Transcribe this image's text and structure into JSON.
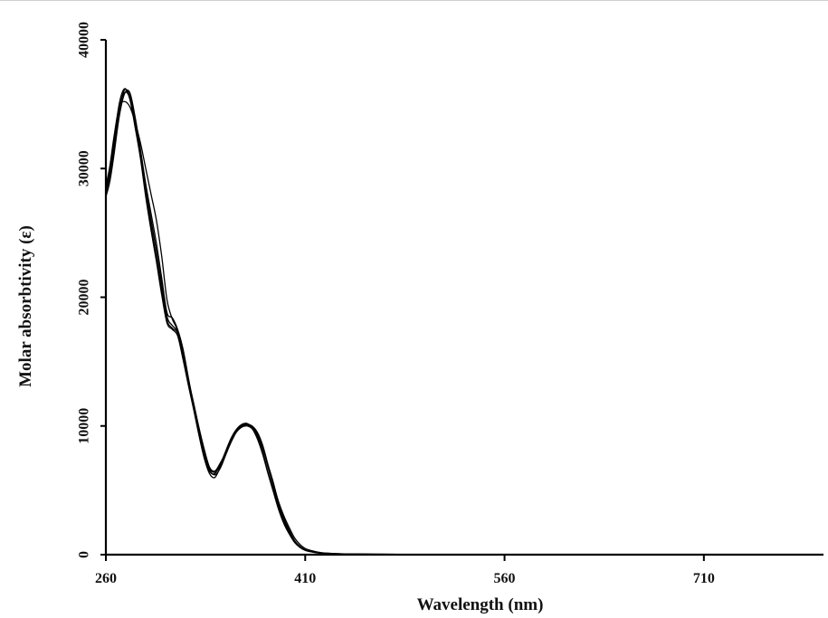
{
  "chart_data": {
    "type": "line",
    "title": "",
    "xlabel": "Wavelength (nm)",
    "ylabel": "Molar absorbtivity (ε)",
    "xlim": [
      260,
      800
    ],
    "ylim": [
      0,
      40000
    ],
    "xticks": [
      260,
      410,
      560,
      710
    ],
    "yticks": [
      0,
      10000,
      20000,
      30000,
      40000
    ],
    "grid": false,
    "legend": "none",
    "series": [
      {
        "x": [
          260,
          263,
          266,
          270,
          274,
          278,
          282,
          286,
          290,
          294,
          298,
          302,
          306,
          310,
          314,
          318,
          322,
          326,
          330,
          334,
          338,
          342,
          346,
          350,
          354,
          358,
          362,
          366,
          370,
          374,
          378,
          382,
          386,
          390,
          394,
          398,
          402,
          406,
          410,
          416,
          422,
          428,
          434,
          440,
          450,
          460,
          480,
          520,
          560,
          600,
          650,
          700
        ],
        "y": [
          28000,
          29500,
          31500,
          34500,
          36100,
          35600,
          33500,
          31000,
          28000,
          25500,
          23000,
          20500,
          18200,
          17600,
          17200,
          15500,
          13500,
          11500,
          9500,
          7800,
          6500,
          6300,
          7000,
          8000,
          9000,
          9700,
          10100,
          10200,
          9900,
          9200,
          8000,
          6400,
          5000,
          3600,
          2500,
          1700,
          1000,
          600,
          350,
          200,
          120,
          80,
          60,
          50,
          40,
          30,
          25,
          20,
          15,
          10,
          8,
          5
        ]
      },
      {
        "x": [
          260,
          263,
          266,
          270,
          274,
          278,
          282,
          286,
          290,
          294,
          298,
          302,
          306,
          310,
          314,
          318,
          322,
          326,
          330,
          334,
          338,
          342,
          346,
          350,
          354,
          358,
          362,
          366,
          370,
          374,
          378,
          382,
          386,
          390,
          394,
          398,
          402,
          406,
          410,
          416,
          422,
          428,
          434,
          440,
          450,
          460,
          480,
          520,
          560,
          600,
          650,
          700
        ],
        "y": [
          27800,
          29000,
          31000,
          34000,
          35800,
          35900,
          34000,
          31500,
          28800,
          26500,
          24200,
          21500,
          18800,
          18400,
          17500,
          16000,
          13800,
          11600,
          9700,
          8000,
          6600,
          6200,
          6700,
          7700,
          8700,
          9500,
          9900,
          10100,
          10000,
          9500,
          8500,
          7000,
          5600,
          4000,
          2800,
          1900,
          1100,
          650,
          380,
          220,
          130,
          90,
          70,
          55,
          45,
          35,
          28,
          22,
          18,
          12,
          9,
          6
        ]
      },
      {
        "x": [
          260,
          263,
          266,
          270,
          274,
          278,
          282,
          286,
          290,
          294,
          298,
          302,
          306,
          310,
          314,
          318,
          322,
          326,
          330,
          334,
          338,
          342,
          346,
          350,
          354,
          358,
          362,
          366,
          370,
          374,
          378,
          382,
          386,
          390,
          394,
          398,
          402,
          406,
          410,
          416,
          422,
          428,
          434,
          440,
          450,
          460,
          480,
          520,
          560,
          600,
          650,
          700
        ],
        "y": [
          28200,
          29800,
          32000,
          35000,
          36200,
          35400,
          33200,
          30800,
          27800,
          25200,
          22800,
          20200,
          18000,
          17500,
          17000,
          15200,
          13200,
          11300,
          9300,
          7500,
          6300,
          6000,
          6800,
          7900,
          8800,
          9600,
          10000,
          10100,
          9800,
          9000,
          7800,
          6300,
          4900,
          3500,
          2400,
          1600,
          950,
          560,
          330,
          190,
          110,
          75,
          55,
          45,
          38,
          28,
          22,
          18,
          14,
          10,
          7,
          4
        ]
      },
      {
        "x": [
          260,
          263,
          266,
          270,
          274,
          278,
          282,
          286,
          290,
          294,
          298,
          302,
          306,
          310,
          314,
          318,
          322,
          326,
          330,
          334,
          338,
          342,
          346,
          350,
          354,
          358,
          362,
          366,
          370,
          374,
          378,
          382,
          386,
          390,
          394,
          398,
          402,
          406,
          410,
          416,
          422,
          428,
          434,
          440,
          450,
          460,
          480,
          520,
          560,
          600,
          650,
          700
        ],
        "y": [
          28600,
          30200,
          32400,
          34800,
          35200,
          34800,
          33600,
          32000,
          30000,
          28000,
          26000,
          23200,
          19800,
          18300,
          17400,
          15600,
          13600,
          11800,
          9900,
          8200,
          6800,
          6500,
          7100,
          7900,
          8800,
          9500,
          9900,
          10000,
          9800,
          9300,
          8300,
          6900,
          5500,
          4100,
          3000,
          2100,
          1300,
          800,
          480,
          280,
          160,
          110,
          80,
          60,
          48,
          36,
          28,
          22,
          18,
          12,
          9,
          6
        ]
      },
      {
        "x": [
          260,
          263,
          266,
          270,
          274,
          278,
          282,
          286,
          290,
          294,
          298,
          302,
          306,
          310,
          314,
          318,
          322,
          326,
          330,
          334,
          338,
          342,
          346,
          350,
          354,
          358,
          362,
          366,
          370,
          374,
          378,
          382,
          386,
          390,
          394,
          398,
          402,
          406,
          410,
          416,
          422,
          428,
          434,
          440,
          450,
          460,
          480,
          520,
          560,
          600,
          650,
          700
        ],
        "y": [
          28400,
          29600,
          31800,
          34600,
          35900,
          35500,
          33800,
          31200,
          28500,
          26000,
          23600,
          21000,
          18500,
          17800,
          17300,
          15700,
          13700,
          11700,
          9600,
          7900,
          6700,
          6400,
          6900,
          7800,
          8700,
          9500,
          9950,
          10150,
          9950,
          9400,
          8400,
          6800,
          5300,
          3800,
          2700,
          1800,
          1050,
          620,
          360,
          210,
          125,
          85,
          65,
          50,
          42,
          32,
          26,
          20,
          16,
          11,
          8,
          5
        ]
      }
    ]
  }
}
